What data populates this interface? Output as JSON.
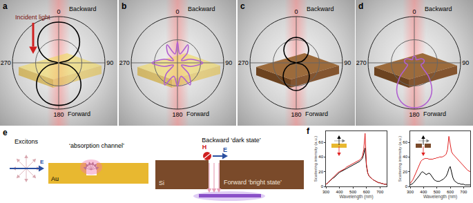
{
  "chart_data": [
    {
      "type": "polar",
      "panel_label": "a",
      "backward_label": "Backward",
      "forward_label": "Forward",
      "incident_label": "Incident light",
      "xticks": [
        0,
        90,
        180,
        270
      ],
      "ylim": [
        0,
        1
      ],
      "yticks": [
        0.5,
        1
      ],
      "tick_labels": "x",
      "grid": true,
      "x": [
        0,
        15,
        30,
        45,
        60,
        75,
        90,
        105,
        120,
        135,
        150,
        165,
        180,
        195,
        210,
        225,
        240,
        255,
        270,
        285,
        300,
        315,
        330,
        345,
        360
      ],
      "series": [
        {
          "color": "#000000",
          "values": [
            0.88,
            0.86,
            0.78,
            0.64,
            0.45,
            0.22,
            0.02,
            0.24,
            0.48,
            0.68,
            0.82,
            0.9,
            0.92,
            0.9,
            0.82,
            0.68,
            0.48,
            0.24,
            0.02,
            0.22,
            0.45,
            0.64,
            0.78,
            0.86,
            0.88
          ]
        }
      ]
    },
    {
      "type": "polar",
      "panel_label": "b",
      "backward_label": "Backward",
      "forward_label": "Forward",
      "xticks": [
        0,
        90,
        180,
        270
      ],
      "ylim": [
        0,
        1
      ],
      "yticks": [
        0.5,
        1
      ],
      "tick_labels": "x",
      "grid": true,
      "x": [
        0,
        15,
        30,
        45,
        60,
        75,
        90,
        105,
        120,
        135,
        150,
        165,
        180,
        195,
        210,
        225,
        240,
        255,
        270,
        285,
        300,
        315,
        330,
        345,
        360
      ],
      "series": [
        {
          "color": "#b060d0",
          "values": [
            0.45,
            0.2,
            0.45,
            0.3,
            0.1,
            0.3,
            0.55,
            0.3,
            0.1,
            0.35,
            0.55,
            0.3,
            0.5,
            0.3,
            0.55,
            0.35,
            0.1,
            0.3,
            0.55,
            0.3,
            0.1,
            0.3,
            0.45,
            0.2,
            0.45
          ]
        }
      ]
    },
    {
      "type": "polar",
      "panel_label": "c",
      "backward_label": "Backward",
      "forward_label": "Forward",
      "xticks": [
        0,
        90,
        180,
        270
      ],
      "ylim": [
        0,
        1
      ],
      "yticks": [
        0.5,
        1
      ],
      "tick_labels": "x",
      "grid": true,
      "x": [
        0,
        15,
        30,
        45,
        60,
        75,
        90,
        105,
        120,
        135,
        150,
        165,
        180,
        195,
        210,
        225,
        240,
        255,
        270,
        285,
        300,
        315,
        330,
        345,
        360
      ],
      "series": [
        {
          "color": "#000000",
          "values": [
            0.55,
            0.53,
            0.47,
            0.38,
            0.26,
            0.13,
            0.01,
            0.14,
            0.28,
            0.4,
            0.5,
            0.57,
            0.6,
            0.57,
            0.5,
            0.4,
            0.28,
            0.14,
            0.01,
            0.13,
            0.26,
            0.38,
            0.47,
            0.53,
            0.55
          ]
        }
      ]
    },
    {
      "type": "polar",
      "panel_label": "d",
      "backward_label": "Backward",
      "forward_label": "Forward",
      "xticks": [
        0,
        90,
        180,
        270
      ],
      "ylim": [
        0,
        1
      ],
      "yticks": [
        0.5,
        1
      ],
      "tick_labels": "x",
      "grid": true,
      "x": [
        0,
        15,
        30,
        45,
        60,
        75,
        90,
        105,
        120,
        135,
        150,
        165,
        180,
        195,
        210,
        225,
        240,
        255,
        270,
        285,
        300,
        315,
        330,
        345,
        360
      ],
      "series": [
        {
          "color": "#b060d0",
          "values": [
            0.15,
            0.12,
            0.08,
            0.1,
            0.18,
            0.22,
            0.2,
            0.15,
            0.2,
            0.45,
            0.75,
            0.92,
            0.97,
            0.92,
            0.75,
            0.45,
            0.2,
            0.15,
            0.2,
            0.22,
            0.18,
            0.1,
            0.08,
            0.12,
            0.15
          ]
        }
      ]
    },
    {
      "type": "line",
      "panel_label": "f",
      "xlabel": "Wavelength (nm)",
      "ylabel": "Scattering intensity (a.u.)",
      "xlim": [
        300,
        750
      ],
      "xticks": [
        300,
        400,
        500,
        600,
        700
      ],
      "ylim": [
        0,
        75
      ],
      "yticks": [
        0,
        20,
        40,
        60
      ],
      "grid": false,
      "x": [
        300,
        310,
        320,
        330,
        340,
        350,
        360,
        370,
        380,
        390,
        400,
        410,
        420,
        430,
        440,
        450,
        460,
        470,
        480,
        490,
        500,
        510,
        520,
        530,
        540,
        550,
        560,
        570,
        580,
        590,
        600,
        610,
        620,
        630,
        640,
        650,
        660,
        670,
        680,
        690,
        700,
        710,
        720,
        730,
        740,
        750
      ],
      "series": [
        {
          "color": "#000000",
          "values": [
            3,
            4,
            6,
            8,
            9,
            11,
            12,
            14,
            16,
            18,
            19,
            20,
            21,
            22,
            23,
            24,
            25,
            26,
            27,
            28,
            29,
            30,
            31,
            32,
            33,
            34,
            36,
            38,
            44,
            52,
            28,
            18,
            14,
            12,
            10,
            9,
            8,
            7,
            6,
            5,
            5,
            4,
            4,
            3,
            3,
            3
          ]
        },
        {
          "color": "#e02020",
          "values": [
            3,
            4,
            6,
            8,
            10,
            12,
            13,
            15,
            17,
            19,
            20,
            21,
            22,
            23,
            24,
            26,
            27,
            28,
            29,
            30,
            31,
            32,
            33,
            34,
            35,
            36,
            38,
            41,
            50,
            72,
            30,
            18,
            14,
            12,
            10,
            9,
            8,
            7,
            6,
            5,
            5,
            4,
            4,
            3,
            3,
            3
          ]
        }
      ]
    },
    {
      "type": "line",
      "xlabel": "Wavelength (nm)",
      "ylabel": "Scattering intensity (a.u.)",
      "xlim": [
        300,
        750
      ],
      "xticks": [
        300,
        400,
        500,
        600,
        700
      ],
      "ylim": [
        0,
        75
      ],
      "yticks": [
        0,
        20,
        40,
        60
      ],
      "grid": false,
      "x": [
        300,
        310,
        320,
        330,
        340,
        350,
        360,
        370,
        380,
        390,
        400,
        410,
        420,
        430,
        440,
        450,
        460,
        470,
        480,
        490,
        500,
        510,
        520,
        530,
        540,
        550,
        560,
        570,
        580,
        590,
        600,
        610,
        620,
        630,
        640,
        650,
        660,
        670,
        680,
        690,
        700,
        710,
        720,
        730,
        740,
        750
      ],
      "series": [
        {
          "color": "#000000",
          "values": [
            2,
            3,
            4,
            6,
            8,
            10,
            12,
            15,
            18,
            20,
            19,
            17,
            16,
            17,
            18,
            17,
            14,
            11,
            9,
            8,
            7,
            7,
            7,
            8,
            9,
            10,
            12,
            14,
            18,
            24,
            27,
            20,
            12,
            8,
            6,
            5,
            4,
            4,
            3,
            3,
            3,
            2,
            2,
            2,
            2,
            2
          ]
        },
        {
          "color": "#e02020",
          "values": [
            4,
            6,
            9,
            13,
            17,
            21,
            26,
            30,
            34,
            36,
            37,
            38,
            38,
            38,
            37,
            37,
            37,
            37,
            38,
            38,
            39,
            39,
            40,
            40,
            40,
            41,
            42,
            44,
            50,
            68,
            55,
            47,
            44,
            42,
            40,
            38,
            36,
            33,
            31,
            29,
            27,
            25,
            24,
            22,
            21,
            20
          ]
        }
      ]
    }
  ],
  "diagram_e": {
    "panel_label": "e",
    "excitons": "Excitons",
    "exciton_field": "E",
    "absorption": "‘absorption channel’",
    "au": "Au",
    "si": "Si",
    "h_label": "H",
    "e_label": "E",
    "backward": "Backward ‘dark state’",
    "forward": "Forward ‘bright state’"
  }
}
